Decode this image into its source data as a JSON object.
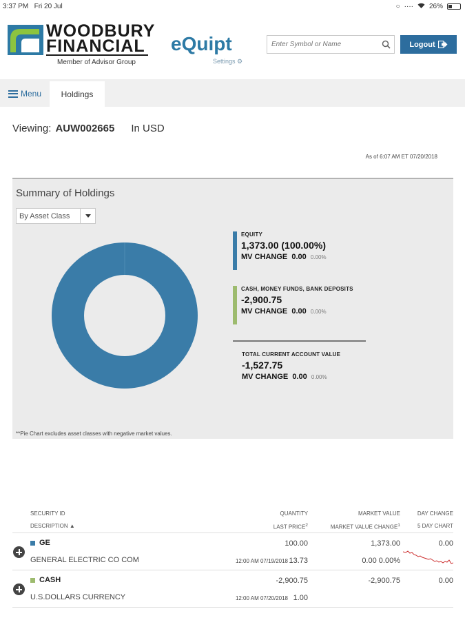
{
  "status_bar": {
    "time": "3:37 PM",
    "date": "Fri 20 Jul",
    "battery": "26%"
  },
  "logo": {
    "line1": "WOODBURY",
    "line2": "FINANCIAL",
    "sub": "Member of Advisor Group"
  },
  "brand": "eQuipt",
  "settings_label": "Settings",
  "search": {
    "placeholder": "Enter Symbol or Name",
    "icon": "search-icon"
  },
  "logout_label": "Logout",
  "nav": {
    "menu_label": "Menu",
    "tab_holdings": "Holdings"
  },
  "viewing": {
    "label": "Viewing:",
    "account": "AUW002665",
    "currency": "In USD"
  },
  "as_of": "As of 6:07 AM ET 07/20/2018",
  "summary": {
    "title": "Summary of Holdings",
    "select_value": "By Asset Class",
    "legend": [
      {
        "label": "EQUITY",
        "value": "1,373.00 (100.00%)",
        "mv_label": "MV CHANGE",
        "mv_value": "0.00",
        "mv_pct": "0.00%",
        "color": "#3a7ca8"
      },
      {
        "label": "CASH, MONEY FUNDS, BANK DEPOSITS",
        "value": "-2,900.75",
        "mv_label": "MV CHANGE",
        "mv_value": "0.00",
        "mv_pct": "0.00%",
        "color": "#9dbb6e"
      }
    ],
    "total": {
      "label": "TOTAL CURRENT ACCOUNT VALUE",
      "value": "-1,527.75",
      "mv_label": "MV CHANGE",
      "mv_value": "0.00",
      "mv_pct": "0.00%"
    },
    "footnote": "**Pie Chart excludes asset classes with negative market values."
  },
  "chart_data": {
    "type": "pie",
    "categories": [
      "EQUITY"
    ],
    "values": [
      100.0
    ],
    "colors": [
      "#3a7ca8"
    ],
    "donut": true
  },
  "table": {
    "headers": {
      "security_id": "SECURITY ID",
      "description": "DESCRIPTION",
      "quantity": "QUANTITY",
      "last_price": "LAST PRICE",
      "last_price_note": "2",
      "market_value": "MARKET VALUE",
      "mv_change": "MARKET VALUE CHANGE",
      "mv_change_note": "1",
      "day_change": "DAY CHANGE",
      "five_day_chart": "5 DAY CHART"
    },
    "rows": [
      {
        "symbol": "GE",
        "description": "GENERAL ELECTRIC CO COM",
        "quantity": "100.00",
        "price_time": "12:00 AM 07/19/2018",
        "last_price": "13.73",
        "market_value": "1,373.00",
        "mv_change": "0.00",
        "mv_change_pct": "0.00%",
        "day_change": "0.00",
        "color": "#3a7ca8"
      },
      {
        "symbol": "CASH",
        "description": "U.S.DOLLARS CURRENCY",
        "quantity": "-2,900.75",
        "price_time": "12:00 AM 07/20/2018",
        "last_price": "1.00",
        "market_value": "-2,900.75",
        "mv_change": "",
        "mv_change_pct": "",
        "day_change": "0.00",
        "color": "#9dbb6e"
      }
    ]
  }
}
